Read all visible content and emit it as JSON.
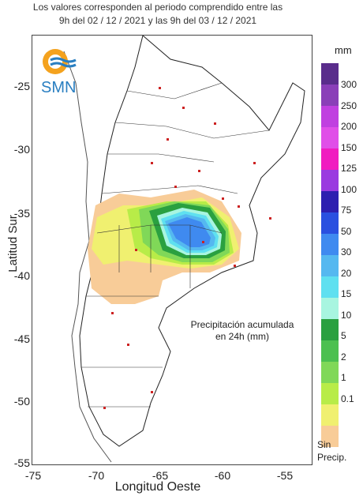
{
  "header": {
    "line1": "Los valores corresponden al periodo comprendido entre las",
    "line2": "9h del 02 / 12 / 2021  y las 9h del 03 / 12 / 2021"
  },
  "logo": {
    "text": "SMN"
  },
  "axes": {
    "ylabel": "Latitud Sur",
    "xlabel": "Longitud Oeste",
    "yticks": [
      "-25",
      "-30",
      "-35",
      "-40",
      "-45",
      "-50",
      "-55"
    ],
    "xticks": [
      "-75",
      "-70",
      "-65",
      "-60",
      "-55"
    ]
  },
  "caption": {
    "line1": "Precipitación acumulada",
    "line2": "en 24h (mm)"
  },
  "legend": {
    "unit": "mm",
    "labels": [
      "300",
      "250",
      "200",
      "150",
      "125",
      "100",
      "75",
      "50",
      "30",
      "20",
      "15",
      "10",
      "5",
      "2",
      "1",
      "0.1"
    ],
    "colors": [
      "#5a2d8c",
      "#8a3fb8",
      "#c040e0",
      "#e04fe8",
      "#f01cc0",
      "#9a3ae0",
      "#2d1fb0",
      "#2a50e0",
      "#3f8af0",
      "#55b8f0",
      "#5fe0f0",
      "#a8f5e0",
      "#2aa040",
      "#4cc050",
      "#80d858",
      "#b8ec48",
      "#f0f070",
      "#f8cc98"
    ],
    "nodata_line1": "Sin",
    "nodata_line2": "Precip."
  }
}
